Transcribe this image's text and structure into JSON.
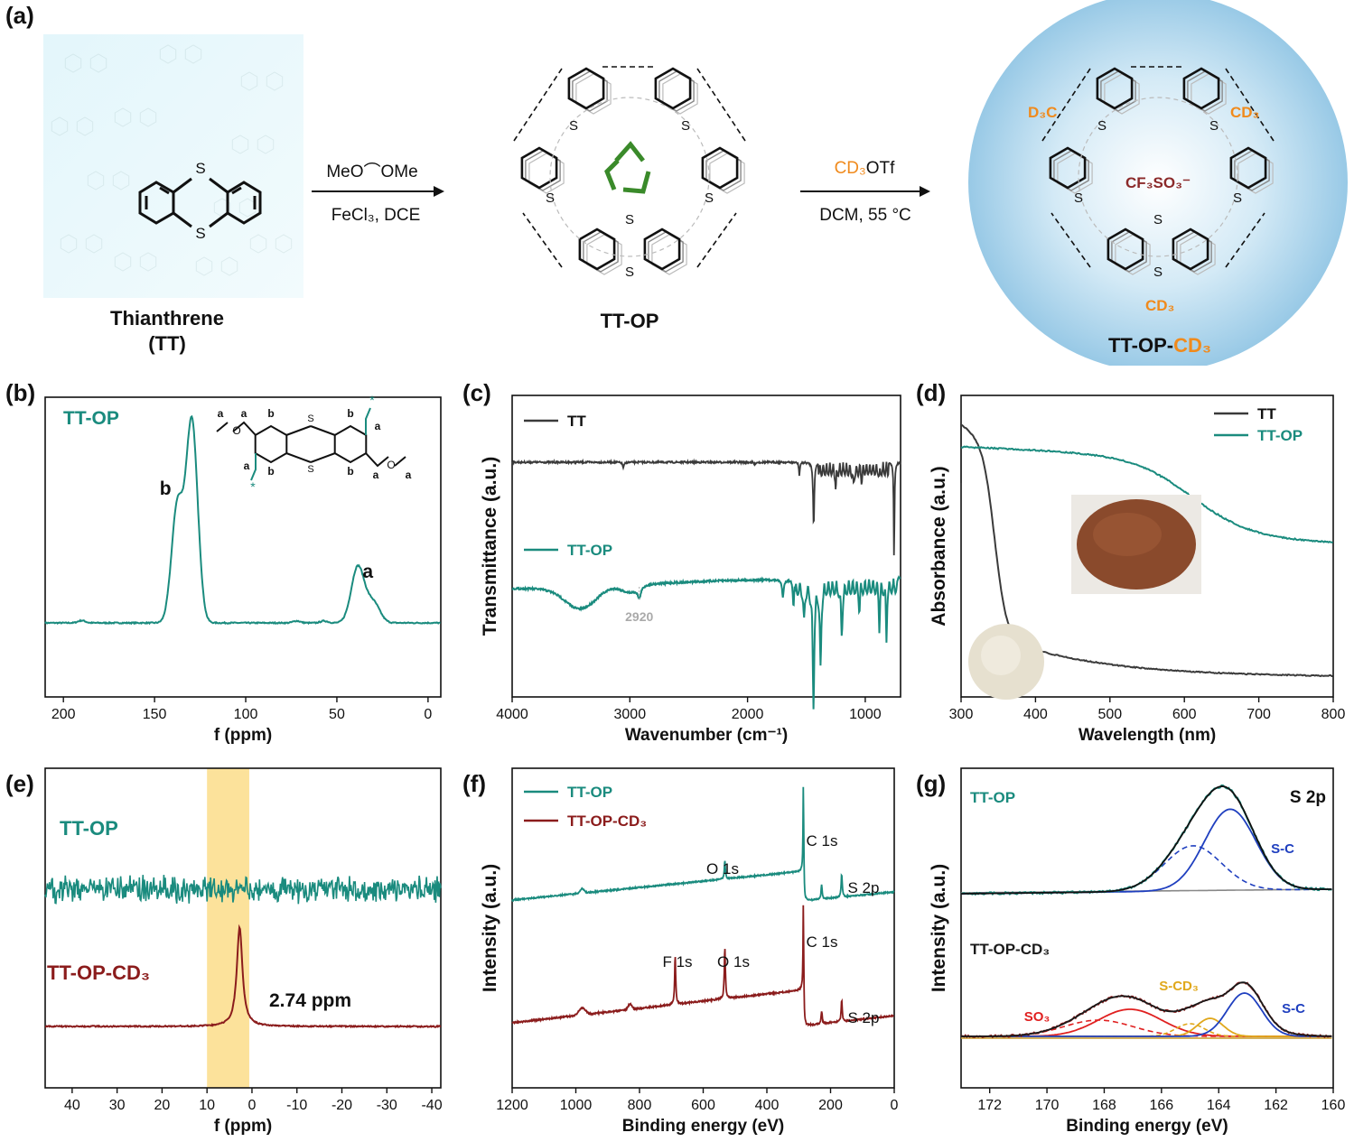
{
  "figure": {
    "panel_labels": [
      "(a)",
      "(b)",
      "(c)",
      "(d)",
      "(e)",
      "(f)",
      "(g)"
    ]
  },
  "scheme": {
    "tt_name": "Thianthrene",
    "tt_abbr": "(TT)",
    "step1_reagent": "MeO⌒OMe",
    "step1_cond": "FeCl₃, DCE",
    "product1": "TT-OP",
    "step2_reagent_a": "CD₃",
    "step2_reagent_b": "OTf",
    "step2_cond": "DCM, 55 °C",
    "product2_a": "TT-OP-",
    "product2_b": "CD₃",
    "counterion": "CF₃SO₃⁻",
    "d3c_label": "D₃C",
    "cd3_label": "CD₃",
    "colors": {
      "orange": "#f08a1c",
      "teal": "#1a8b7e",
      "recycle": "#3a8a2a"
    }
  },
  "chart_data": [
    {
      "id": "b",
      "type": "line",
      "xlabel": "f (ppm)",
      "ylabel": "",
      "xlim": [
        210,
        -7
      ],
      "xticks": [
        200,
        150,
        100,
        50,
        0
      ],
      "series": [
        {
          "name": "TT-OP",
          "color": "#1a8b7e"
        }
      ],
      "peak_labels": [
        {
          "text": "b",
          "x": 144
        },
        {
          "text": "a",
          "x": 33
        }
      ],
      "peaks_ppm": [
        {
          "center": 129.5,
          "height": 1.0
        },
        {
          "center": 137.5,
          "height": 0.58
        },
        {
          "center": 38.5,
          "height": 0.28
        },
        {
          "center": 30,
          "height": 0.1
        }
      ],
      "inset_title": "TT-OP"
    },
    {
      "id": "c",
      "type": "line",
      "xlabel": "Wavenumber (cm⁻¹)",
      "ylabel": "Transmittance (a.u.)",
      "xlim": [
        4000,
        700
      ],
      "xticks": [
        4000,
        3000,
        2000,
        1000
      ],
      "series": [
        {
          "name": "TT",
          "color": "#3a3a3a"
        },
        {
          "name": "TT-OP",
          "color": "#1a8b7e"
        }
      ],
      "annotations": [
        {
          "text": "2920",
          "x": 2920
        }
      ]
    },
    {
      "id": "d",
      "type": "line",
      "xlabel": "Wavelength (nm)",
      "ylabel": "Absorbance (a.u.)",
      "xlim": [
        300,
        800
      ],
      "xticks": [
        300,
        400,
        500,
        600,
        700,
        800
      ],
      "series": [
        {
          "name": "TT",
          "color": "#3a3a3a"
        },
        {
          "name": "TT-OP",
          "color": "#1a8b7e"
        }
      ],
      "legend": "top-right"
    },
    {
      "id": "e",
      "type": "line",
      "xlabel": "f (ppm)",
      "ylabel": "",
      "xlim": [
        46,
        -42
      ],
      "xticks": [
        40,
        30,
        20,
        10,
        0,
        -10,
        -20,
        -30,
        -40
      ],
      "series": [
        {
          "name": "TT-OP",
          "color": "#1a8b7e"
        },
        {
          "name": "TT-OP-CD₃",
          "color": "#8b1c1c"
        }
      ],
      "highlight_range_ppm": [
        10,
        1
      ],
      "peak": {
        "x": 2.74,
        "label": "2.74 ppm"
      }
    },
    {
      "id": "f",
      "type": "line",
      "xlabel": "Binding energy (eV)",
      "ylabel": "Intensity (a.u.)",
      "xlim": [
        1200,
        0
      ],
      "xticks": [
        1200,
        1000,
        800,
        600,
        400,
        200,
        0
      ],
      "series": [
        {
          "name": "TT-OP",
          "color": "#1a8b7e"
        },
        {
          "name": "TT-OP-CD₃",
          "color": "#8b1c1c"
        }
      ],
      "peak_labels": [
        {
          "text": "O 1s",
          "x": 532,
          "series": "TT-OP"
        },
        {
          "text": "C 1s",
          "x": 285,
          "series": "TT-OP"
        },
        {
          "text": "S 2p",
          "x": 165,
          "series": "TT-OP"
        },
        {
          "text": "F 1s",
          "x": 688,
          "series": "TT-OP-CD₃"
        },
        {
          "text": "O 1s",
          "x": 532,
          "series": "TT-OP-CD₃"
        },
        {
          "text": "C 1s",
          "x": 285,
          "series": "TT-OP-CD₃"
        },
        {
          "text": "S 2p",
          "x": 165,
          "series": "TT-OP-CD₃"
        }
      ]
    },
    {
      "id": "g",
      "type": "line",
      "title": "S 2p",
      "xlabel": "Binding energy (eV)",
      "ylabel": "Intensity (a.u.)",
      "xlim": [
        173,
        160
      ],
      "xticks": [
        172,
        170,
        168,
        166,
        164,
        162,
        160
      ],
      "series": [
        {
          "name": "TT-OP",
          "color": "#1a8b7e"
        },
        {
          "name": "TT-OP-CD₃",
          "color": "#1a1a1a"
        }
      ],
      "components": [
        {
          "label": "S-C",
          "color": "#1f3fbf"
        },
        {
          "label": "S-CD₃",
          "color": "#e0a81c"
        },
        {
          "label": "SO₃",
          "color": "#e02020"
        }
      ]
    }
  ]
}
